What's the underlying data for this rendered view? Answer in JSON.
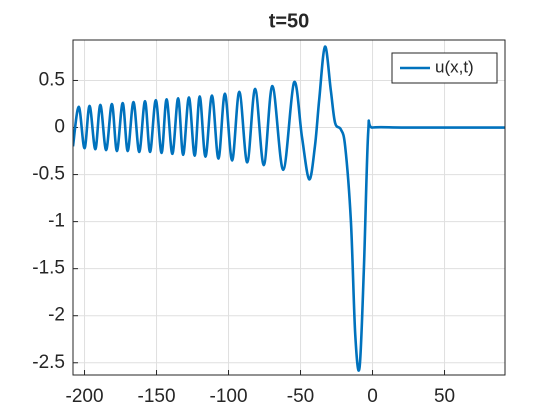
{
  "chart_data": {
    "type": "line",
    "title": "t=50",
    "x": [
      -208,
      -204,
      -200,
      -196.5,
      -192.5,
      -189,
      -185,
      -181,
      -177.5,
      -173.5,
      -170,
      -166,
      -162,
      -158,
      -154.5,
      -150.5,
      -146.5,
      -143,
      -139,
      -135,
      -131.5,
      -127.5,
      -123.5,
      -120,
      -116,
      -111.5,
      -107,
      -102.5,
      -97.5,
      -92.5,
      -87,
      -81.5,
      -75.5,
      -69.5,
      -62,
      -54.5,
      -49,
      -44,
      -40,
      -37,
      -33,
      -29,
      -26,
      -22,
      -19,
      -15,
      -12,
      -9,
      -6,
      -3,
      0,
      20,
      50,
      92
    ],
    "series": [
      {
        "name": "u(x,t)",
        "color": "#0072bd",
        "values": [
          -0.2,
          0.22,
          -0.22,
          0.23,
          -0.23,
          0.24,
          -0.24,
          0.25,
          -0.25,
          0.26,
          -0.25,
          0.27,
          -0.26,
          0.28,
          -0.26,
          0.29,
          -0.27,
          0.3,
          -0.28,
          0.31,
          -0.29,
          0.32,
          -0.3,
          0.33,
          -0.31,
          0.34,
          -0.33,
          0.36,
          -0.35,
          0.38,
          -0.37,
          0.41,
          -0.4,
          0.44,
          -0.45,
          0.48,
          -0.1,
          -0.55,
          -0.2,
          0.3,
          0.86,
          0.4,
          0.05,
          -0.02,
          -0.2,
          -1.0,
          -2.2,
          -2.55,
          -1.5,
          -0.05,
          0,
          0,
          0,
          0
        ]
      }
    ],
    "xlim": [
      -208,
      92
    ],
    "ylim": [
      -2.63,
      0.93
    ],
    "xticks": [
      -200,
      -150,
      -100,
      -50,
      0,
      50
    ],
    "yticks": [
      -2.5,
      -2,
      -1.5,
      -1,
      -0.5,
      0,
      0.5
    ],
    "grid": true,
    "legend": "top-right"
  }
}
